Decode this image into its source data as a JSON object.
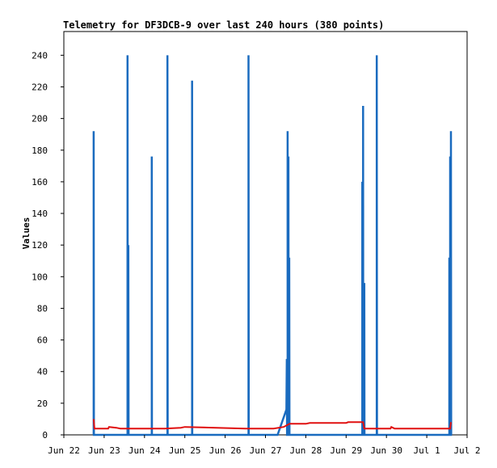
{
  "chart_data": {
    "type": "line",
    "title": "Telemetry for DF3DCB-9 over last 240 hours (380 points)",
    "ylabel": "Values",
    "xlabel": "",
    "ylim": [
      0,
      255
    ],
    "xlim": [
      0,
      10
    ],
    "x_ticks": [
      {
        "x": 0,
        "label": "Jun 22"
      },
      {
        "x": 1,
        "label": "Jun 23"
      },
      {
        "x": 2,
        "label": "Jun 24"
      },
      {
        "x": 3,
        "label": "Jun 25"
      },
      {
        "x": 4,
        "label": "Jun 26"
      },
      {
        "x": 5,
        "label": "Jun 27"
      },
      {
        "x": 6,
        "label": "Jun 28"
      },
      {
        "x": 7,
        "label": "Jun 29"
      },
      {
        "x": 8,
        "label": "Jun 30"
      },
      {
        "x": 9,
        "label": "Jul 1"
      },
      {
        "x": 10,
        "label": "Jul 2"
      }
    ],
    "y_ticks": [
      0,
      20,
      40,
      60,
      80,
      100,
      120,
      140,
      160,
      180,
      200,
      220,
      240
    ],
    "grid": false,
    "series": [
      {
        "color": "#1a6bbf",
        "points": [
          [
            0.74,
            0
          ],
          [
            0.74,
            192
          ],
          [
            0.745,
            0
          ],
          [
            1.58,
            0
          ],
          [
            1.58,
            240
          ],
          [
            1.585,
            0
          ],
          [
            1.6,
            0
          ],
          [
            1.6,
            120
          ],
          [
            1.605,
            0
          ],
          [
            2.18,
            0
          ],
          [
            2.18,
            176
          ],
          [
            2.185,
            0
          ],
          [
            2.57,
            0
          ],
          [
            2.57,
            240
          ],
          [
            2.575,
            0
          ],
          [
            3.18,
            0
          ],
          [
            3.18,
            224
          ],
          [
            3.185,
            0
          ],
          [
            4.58,
            0
          ],
          [
            4.58,
            240
          ],
          [
            4.585,
            0
          ],
          [
            5.3,
            0
          ],
          [
            5.52,
            16
          ],
          [
            5.53,
            48
          ],
          [
            5.535,
            0
          ],
          [
            5.55,
            0
          ],
          [
            5.55,
            192
          ],
          [
            5.555,
            0
          ],
          [
            5.57,
            0
          ],
          [
            5.57,
            176
          ],
          [
            5.575,
            0
          ],
          [
            5.59,
            0
          ],
          [
            5.59,
            112
          ],
          [
            5.595,
            0
          ],
          [
            7.4,
            0
          ],
          [
            7.4,
            160
          ],
          [
            7.405,
            0
          ],
          [
            7.42,
            0
          ],
          [
            7.42,
            208
          ],
          [
            7.425,
            0
          ],
          [
            7.45,
            0
          ],
          [
            7.45,
            96
          ],
          [
            7.455,
            0
          ],
          [
            7.76,
            0
          ],
          [
            7.76,
            240
          ],
          [
            7.765,
            0
          ],
          [
            9.56,
            0
          ],
          [
            9.56,
            112
          ],
          [
            9.565,
            0
          ],
          [
            9.58,
            0
          ],
          [
            9.58,
            176
          ],
          [
            9.585,
            0
          ],
          [
            9.6,
            0
          ],
          [
            9.6,
            192
          ],
          [
            9.605,
            0
          ]
        ]
      },
      {
        "color": "#e01010",
        "points": [
          [
            0.74,
            10
          ],
          [
            0.76,
            4
          ],
          [
            1.1,
            4
          ],
          [
            1.12,
            5
          ],
          [
            1.3,
            4.5
          ],
          [
            1.4,
            4
          ],
          [
            2.5,
            4
          ],
          [
            2.9,
            4.5
          ],
          [
            3.0,
            5
          ],
          [
            4.5,
            4
          ],
          [
            5.2,
            4
          ],
          [
            5.45,
            5
          ],
          [
            5.6,
            7
          ],
          [
            6.0,
            7
          ],
          [
            6.1,
            7.5
          ],
          [
            7.0,
            7.5
          ],
          [
            7.05,
            8
          ],
          [
            7.42,
            8
          ],
          [
            7.45,
            4
          ],
          [
            8.1,
            4
          ],
          [
            8.12,
            5
          ],
          [
            8.2,
            4
          ],
          [
            9.58,
            4
          ],
          [
            9.6,
            8
          ]
        ]
      }
    ]
  }
}
